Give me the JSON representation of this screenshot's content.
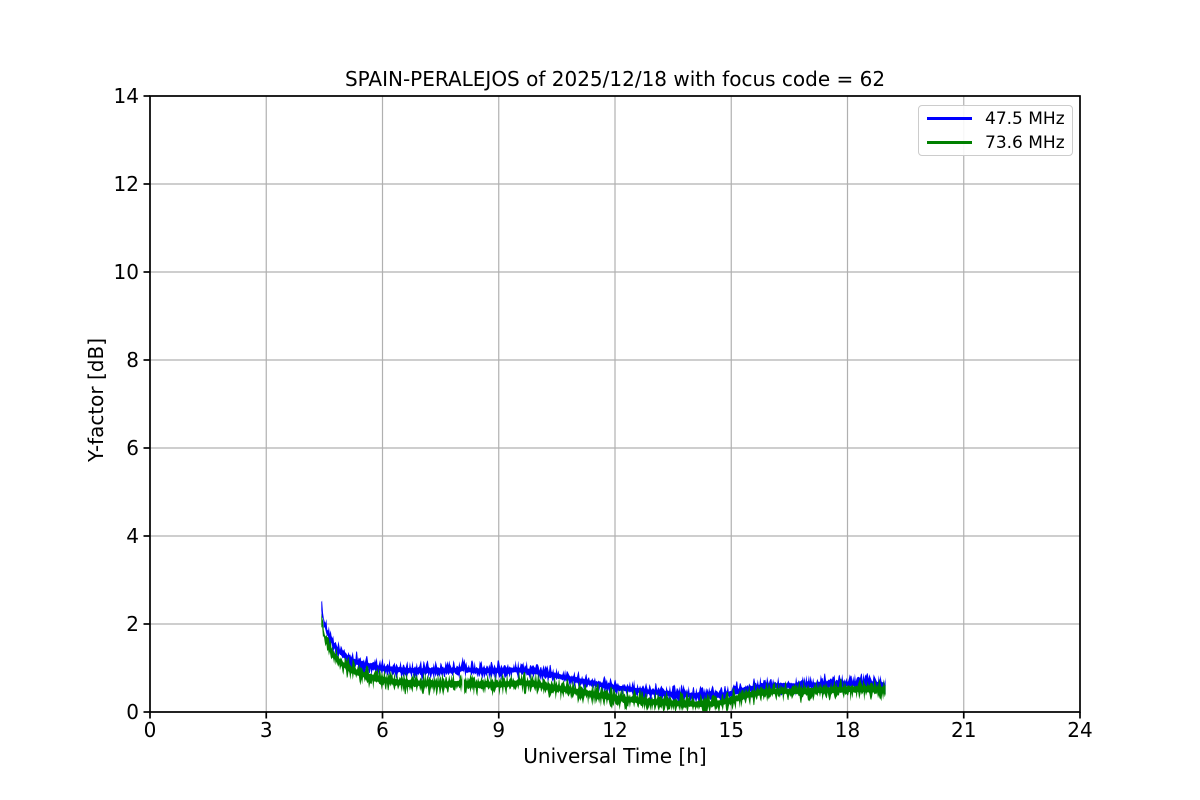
{
  "chart_data": {
    "type": "line",
    "title": "SPAIN-PERALEJOS of 2025/12/18 with focus code = 62",
    "xlabel": "Universal Time [h]",
    "ylabel": "Y-factor [dB]",
    "xlim": [
      0,
      24
    ],
    "ylim": [
      0,
      14
    ],
    "xticks": [
      0,
      3,
      6,
      9,
      12,
      15,
      18,
      21,
      24
    ],
    "yticks": [
      0,
      2,
      4,
      6,
      8,
      10,
      12,
      14
    ],
    "grid": true,
    "grid_color": "#b0b0b0",
    "legend_position": "upper right",
    "data_start_hour": 4.42,
    "data_end_hour": 19.0,
    "data_gap_hour": 8.08,
    "x_hours": [
      4.42,
      4.5,
      4.6,
      4.75,
      4.95,
      5.2,
      5.5,
      5.9,
      6.4,
      7.0,
      7.6,
      8.0,
      8.08,
      8.15,
      8.4,
      9.0,
      9.6,
      10.0,
      10.5,
      11.0,
      11.5,
      12.0,
      12.5,
      13.0,
      13.5,
      14.0,
      14.6,
      15.0,
      15.4,
      15.8,
      16.2,
      16.8,
      17.4,
      18.0,
      18.5,
      18.9,
      19.0
    ],
    "series": [
      {
        "name": "47.5 MHz",
        "color": "#0000ff",
        "noise_halfwidth_db": 0.14,
        "mean_db": [
          2.45,
          2.0,
          1.75,
          1.5,
          1.32,
          1.18,
          1.08,
          1.0,
          0.96,
          0.94,
          0.94,
          0.96,
          1.08,
          0.96,
          0.94,
          0.94,
          0.96,
          0.9,
          0.82,
          0.73,
          0.64,
          0.56,
          0.5,
          0.45,
          0.41,
          0.38,
          0.37,
          0.42,
          0.52,
          0.58,
          0.6,
          0.6,
          0.63,
          0.64,
          0.65,
          0.62,
          0.58
        ]
      },
      {
        "name": "73.6 MHz",
        "color": "#008000",
        "noise_halfwidth_db": 0.16,
        "mean_db": [
          2.12,
          1.72,
          1.5,
          1.28,
          1.1,
          0.95,
          0.85,
          0.75,
          0.68,
          0.65,
          0.63,
          0.65,
          0.7,
          0.64,
          0.62,
          0.62,
          0.67,
          0.62,
          0.54,
          0.47,
          0.39,
          0.32,
          0.27,
          0.23,
          0.2,
          0.18,
          0.19,
          0.27,
          0.38,
          0.45,
          0.47,
          0.47,
          0.5,
          0.51,
          0.52,
          0.5,
          0.46
        ]
      }
    ]
  }
}
